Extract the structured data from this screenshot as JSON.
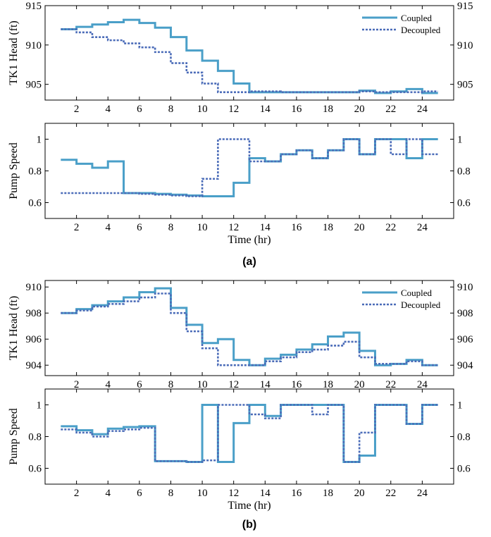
{
  "colors": {
    "coupled": "#4A9FC8",
    "decoupled": "#4A6BB8",
    "axis": "#000000"
  },
  "captions": [
    "(a)",
    "(b)"
  ],
  "chart_data": [
    {
      "type": "line",
      "panel": "(a)",
      "ylabel": "TK1 Head (ft)",
      "xlabel": "",
      "xlim": [
        0,
        26
      ],
      "ylim": [
        903,
        915
      ],
      "xticks": [
        2,
        4,
        6,
        8,
        10,
        12,
        14,
        16,
        18,
        20,
        22,
        24
      ],
      "yticks": [
        905,
        910,
        915
      ],
      "legend": "top-right",
      "series": [
        {
          "name": "Coupled",
          "style": "solid",
          "steps": [
            [
              1,
              912.0
            ],
            [
              2,
              912.3
            ],
            [
              3,
              912.6
            ],
            [
              4,
              912.9
            ],
            [
              5,
              913.2
            ],
            [
              6,
              912.8
            ],
            [
              7,
              912.2
            ],
            [
              8,
              911.0
            ],
            [
              9,
              909.3
            ],
            [
              10,
              908.0
            ],
            [
              11,
              906.7
            ],
            [
              12,
              905.1
            ],
            [
              13,
              904.0
            ],
            [
              14,
              904.0
            ],
            [
              15,
              904.0
            ],
            [
              16,
              904.0
            ],
            [
              17,
              904.0
            ],
            [
              18,
              904.0
            ],
            [
              19,
              904.0
            ],
            [
              20,
              904.2
            ],
            [
              21,
              903.9
            ],
            [
              22,
              904.1
            ],
            [
              23,
              904.4
            ],
            [
              24,
              903.9
            ],
            [
              25,
              903.9
            ]
          ]
        },
        {
          "name": "Decoupled",
          "style": "dotted",
          "steps": [
            [
              1,
              912.0
            ],
            [
              2,
              911.6
            ],
            [
              3,
              911.0
            ],
            [
              4,
              910.6
            ],
            [
              5,
              910.2
            ],
            [
              6,
              909.7
            ],
            [
              7,
              909.1
            ],
            [
              8,
              907.7
            ],
            [
              9,
              906.5
            ],
            [
              10,
              905.1
            ],
            [
              11,
              904.0
            ],
            [
              12,
              904.0
            ],
            [
              13,
              904.1
            ],
            [
              14,
              904.1
            ],
            [
              15,
              904.0
            ],
            [
              16,
              904.0
            ],
            [
              17,
              904.0
            ],
            [
              18,
              904.0
            ],
            [
              19,
              904.0
            ],
            [
              20,
              904.1
            ],
            [
              21,
              904.0
            ],
            [
              22,
              904.0
            ],
            [
              23,
              904.0
            ],
            [
              24,
              904.1
            ],
            [
              25,
              904.1
            ]
          ]
        }
      ]
    },
    {
      "type": "line",
      "panel": "(a)",
      "ylabel": "Pump Speed",
      "xlabel": "Time (hr)",
      "xlim": [
        0,
        26
      ],
      "ylim": [
        0.5,
        1.1
      ],
      "xticks": [
        2,
        4,
        6,
        8,
        10,
        12,
        14,
        16,
        18,
        20,
        22,
        24
      ],
      "yticks": [
        0.6,
        0.8,
        1
      ],
      "series": [
        {
          "name": "Coupled",
          "style": "solid",
          "steps": [
            [
              1,
              0.87
            ],
            [
              2,
              0.845
            ],
            [
              3,
              0.82
            ],
            [
              4,
              0.86
            ],
            [
              5,
              0.66
            ],
            [
              6,
              0.66
            ],
            [
              7,
              0.655
            ],
            [
              8,
              0.65
            ],
            [
              9,
              0.645
            ],
            [
              10,
              0.64
            ],
            [
              11,
              0.64
            ],
            [
              12,
              0.725
            ],
            [
              13,
              0.88
            ],
            [
              14,
              0.86
            ],
            [
              15,
              0.905
            ],
            [
              16,
              0.93
            ],
            [
              17,
              0.88
            ],
            [
              18,
              0.93
            ],
            [
              19,
              1.0
            ],
            [
              20,
              0.905
            ],
            [
              21,
              1.0
            ],
            [
              22,
              1.0
            ],
            [
              23,
              0.88
            ],
            [
              24,
              1.0
            ],
            [
              25,
              1.0
            ]
          ]
        },
        {
          "name": "Decoupled",
          "style": "dotted",
          "steps": [
            [
              1,
              0.66
            ],
            [
              2,
              0.66
            ],
            [
              3,
              0.66
            ],
            [
              4,
              0.66
            ],
            [
              5,
              0.66
            ],
            [
              6,
              0.655
            ],
            [
              7,
              0.65
            ],
            [
              8,
              0.645
            ],
            [
              9,
              0.64
            ],
            [
              10,
              0.75
            ],
            [
              11,
              1.0
            ],
            [
              12,
              1.0
            ],
            [
              13,
              0.86
            ],
            [
              14,
              0.86
            ],
            [
              15,
              0.905
            ],
            [
              16,
              0.93
            ],
            [
              17,
              0.88
            ],
            [
              18,
              0.93
            ],
            [
              19,
              1.0
            ],
            [
              20,
              0.905
            ],
            [
              21,
              1.0
            ],
            [
              22,
              0.905
            ],
            [
              23,
              1.0
            ],
            [
              24,
              0.905
            ],
            [
              25,
              0.905
            ]
          ]
        }
      ]
    },
    {
      "type": "line",
      "panel": "(b)",
      "ylabel": "TK1 Head (ft)",
      "xlabel": "",
      "xlim": [
        0,
        26
      ],
      "ylim": [
        903.2,
        910.5
      ],
      "xticks": [
        2,
        4,
        6,
        8,
        10,
        12,
        14,
        16,
        18,
        20,
        22,
        24
      ],
      "yticks": [
        904,
        906,
        908,
        910
      ],
      "legend": "top-right",
      "series": [
        {
          "name": "Coupled",
          "style": "solid",
          "steps": [
            [
              1,
              908.0
            ],
            [
              2,
              908.3
            ],
            [
              3,
              908.6
            ],
            [
              4,
              908.9
            ],
            [
              5,
              909.2
            ],
            [
              6,
              909.6
            ],
            [
              7,
              909.9
            ],
            [
              8,
              908.4
            ],
            [
              9,
              907.1
            ],
            [
              10,
              905.7
            ],
            [
              11,
              906.0
            ],
            [
              12,
              904.4
            ],
            [
              13,
              904.0
            ],
            [
              14,
              904.5
            ],
            [
              15,
              904.8
            ],
            [
              16,
              905.2
            ],
            [
              17,
              905.6
            ],
            [
              18,
              906.2
            ],
            [
              19,
              906.5
            ],
            [
              20,
              905.1
            ],
            [
              21,
              904.0
            ],
            [
              22,
              904.1
            ],
            [
              23,
              904.4
            ],
            [
              24,
              904.0
            ],
            [
              25,
              904.0
            ]
          ]
        },
        {
          "name": "Decoupled",
          "style": "dotted",
          "steps": [
            [
              1,
              908.0
            ],
            [
              2,
              908.2
            ],
            [
              3,
              908.5
            ],
            [
              4,
              908.7
            ],
            [
              5,
              908.9
            ],
            [
              6,
              909.2
            ],
            [
              7,
              909.5
            ],
            [
              8,
              908.0
            ],
            [
              9,
              906.6
            ],
            [
              10,
              905.3
            ],
            [
              11,
              904.0
            ],
            [
              12,
              904.0
            ],
            [
              13,
              904.0
            ],
            [
              14,
              904.3
            ],
            [
              15,
              904.6
            ],
            [
              16,
              905.0
            ],
            [
              17,
              905.2
            ],
            [
              18,
              905.5
            ],
            [
              19,
              905.8
            ],
            [
              20,
              904.6
            ],
            [
              21,
              904.1
            ],
            [
              22,
              904.1
            ],
            [
              23,
              904.3
            ],
            [
              24,
              904.0
            ],
            [
              25,
              904.0
            ]
          ]
        }
      ]
    },
    {
      "type": "line",
      "panel": "(b)",
      "ylabel": "Pump Speed",
      "xlabel": "Time (hr)",
      "xlim": [
        0,
        26
      ],
      "ylim": [
        0.5,
        1.1
      ],
      "xticks": [
        2,
        4,
        6,
        8,
        10,
        12,
        14,
        16,
        18,
        20,
        22,
        24
      ],
      "yticks": [
        0.6,
        0.8,
        1
      ],
      "series": [
        {
          "name": "Coupled",
          "style": "solid",
          "steps": [
            [
              1,
              0.865
            ],
            [
              2,
              0.84
            ],
            [
              3,
              0.815
            ],
            [
              4,
              0.85
            ],
            [
              5,
              0.86
            ],
            [
              6,
              0.865
            ],
            [
              7,
              0.645
            ],
            [
              8,
              0.645
            ],
            [
              9,
              0.64
            ],
            [
              10,
              1.0
            ],
            [
              11,
              0.64
            ],
            [
              12,
              0.885
            ],
            [
              13,
              1.0
            ],
            [
              14,
              0.93
            ],
            [
              15,
              1.0
            ],
            [
              16,
              1.0
            ],
            [
              17,
              1.0
            ],
            [
              18,
              1.0
            ],
            [
              19,
              0.64
            ],
            [
              20,
              0.68
            ],
            [
              21,
              1.0
            ],
            [
              22,
              1.0
            ],
            [
              23,
              0.88
            ],
            [
              24,
              1.0
            ],
            [
              25,
              1.0
            ]
          ]
        },
        {
          "name": "Decoupled",
          "style": "dotted",
          "steps": [
            [
              1,
              0.845
            ],
            [
              2,
              0.825
            ],
            [
              3,
              0.8
            ],
            [
              4,
              0.835
            ],
            [
              5,
              0.845
            ],
            [
              6,
              0.855
            ],
            [
              7,
              0.645
            ],
            [
              8,
              0.645
            ],
            [
              9,
              0.64
            ],
            [
              10,
              0.65
            ],
            [
              11,
              1.0
            ],
            [
              12,
              1.0
            ],
            [
              13,
              0.94
            ],
            [
              14,
              0.915
            ],
            [
              15,
              1.0
            ],
            [
              16,
              1.0
            ],
            [
              17,
              0.94
            ],
            [
              18,
              1.0
            ],
            [
              19,
              0.64
            ],
            [
              20,
              0.825
            ],
            [
              21,
              1.0
            ],
            [
              22,
              1.0
            ],
            [
              23,
              0.88
            ],
            [
              24,
              1.0
            ],
            [
              25,
              1.0
            ]
          ]
        }
      ]
    }
  ]
}
